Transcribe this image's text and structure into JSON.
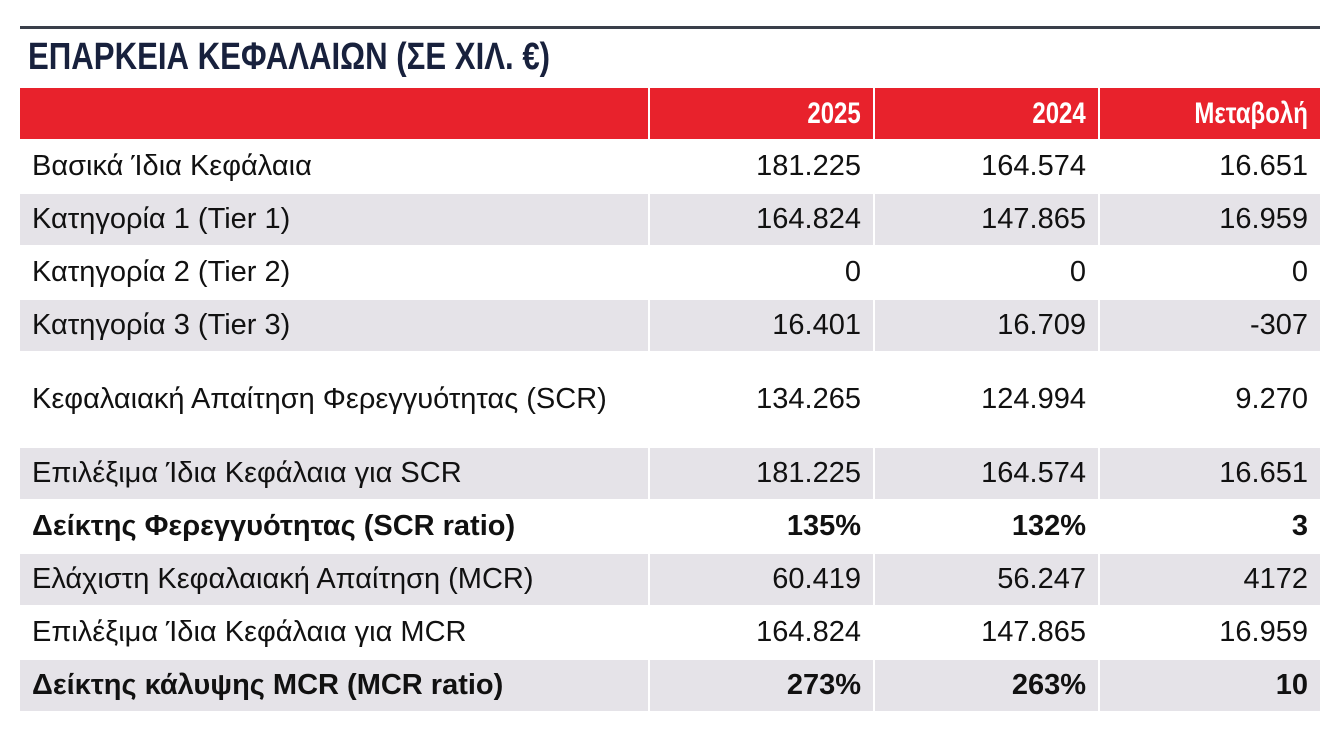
{
  "title": "ΕΠΑΡΚΕΙΑ ΚΕΦΑΛΑΙΩΝ (ΣΕ ΧΙΛ. €)",
  "table": {
    "columns": [
      "2025",
      "2024",
      "Μεταβολή"
    ],
    "rows": [
      {
        "label": "Βασικά Ίδια Κεφάλαια",
        "cells": [
          "181.225",
          "164.574",
          "16.651"
        ]
      },
      {
        "label": "Κατηγορία 1 (Tier 1)",
        "cells": [
          "164.824",
          "147.865",
          "16.959"
        ]
      },
      {
        "label": "Κατηγορία 2 (Tier 2)",
        "cells": [
          "0",
          "0",
          "0"
        ]
      },
      {
        "label": "Κατηγορία 3 (Tier 3)",
        "cells": [
          "16.401",
          "16.709",
          "-307"
        ]
      },
      {
        "label": "Κεφαλαιακή Απαίτηση Φερεγγυότητας (SCR)",
        "cells": [
          "134.265",
          "124.994",
          "9.270"
        ]
      },
      {
        "label": "Επιλέξιμα Ίδια Κεφάλαια για SCR",
        "cells": [
          "181.225",
          "164.574",
          "16.651"
        ]
      },
      {
        "label": "Δείκτης Φερεγγυότητας (SCR ratio)",
        "cells": [
          "135%",
          "132%",
          "3"
        ],
        "bold": true
      },
      {
        "label": "Ελάχιστη Κεφαλαιακή Απαίτηση (MCR)",
        "cells": [
          "60.419",
          "56.247",
          "4172"
        ]
      },
      {
        "label": "Επιλέξιμα Ίδια Κεφάλαια για MCR",
        "cells": [
          "164.824",
          "147.865",
          "16.959"
        ]
      },
      {
        "label": "Δείκτης κάλυψης MCR (MCR ratio)",
        "cells": [
          "273%",
          "263%",
          "10"
        ],
        "bold": true
      }
    ]
  }
}
